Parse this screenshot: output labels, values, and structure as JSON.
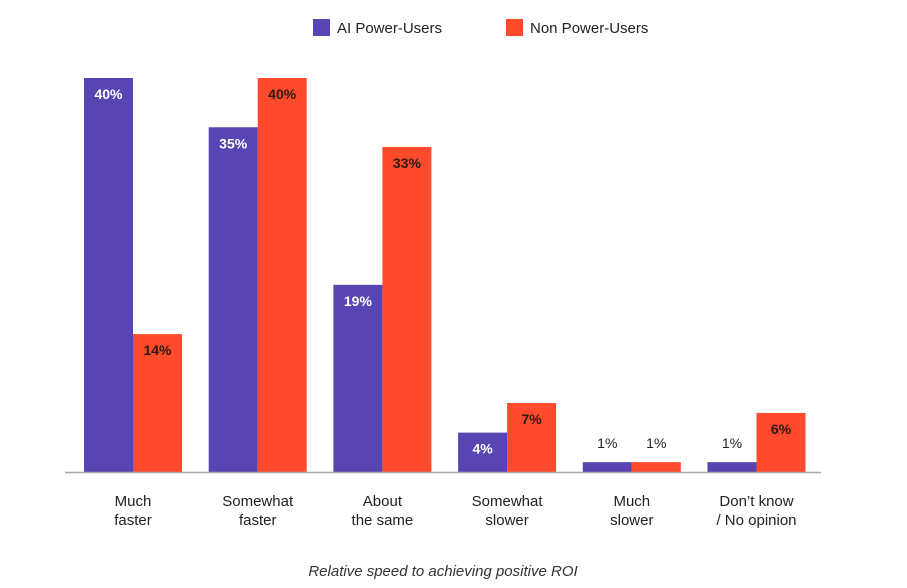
{
  "chart_data": {
    "type": "bar",
    "title": "",
    "xlabel": "Relative speed to achieving positive ROI",
    "ylabel": "",
    "ylim": [
      0,
      40
    ],
    "grid": false,
    "legend_position": "top-center",
    "categories": [
      [
        "Much",
        "faster"
      ],
      [
        "Somewhat",
        "faster"
      ],
      [
        "About",
        "the same"
      ],
      [
        "Somewhat",
        "slower"
      ],
      [
        "Much",
        "slower"
      ],
      [
        "Don’t know",
        "/ No opinion"
      ]
    ],
    "series": [
      {
        "name": "AI Power-Users",
        "color": "#5944B3",
        "values": [
          40,
          35,
          19,
          4,
          1,
          1
        ],
        "labels": [
          "40%",
          "35%",
          "19%",
          "4%",
          "1%",
          "1%"
        ]
      },
      {
        "name": "Non Power-Users",
        "color": "#FF4A2B",
        "values": [
          14,
          40,
          33,
          7,
          1,
          6
        ],
        "labels": [
          "14%",
          "40%",
          "33%",
          "7%",
          "1%",
          "6%"
        ]
      }
    ]
  }
}
